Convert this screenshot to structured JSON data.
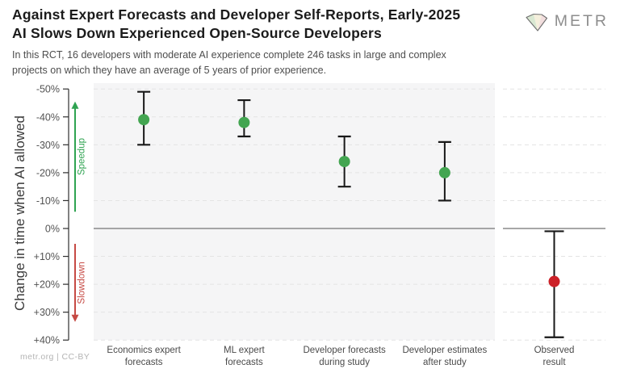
{
  "header": {
    "title_line1": "Against Expert Forecasts and Developer Self-Reports, Early-2025",
    "title_line2": "AI Slows Down Experienced Open-Source Developers",
    "subtitle_line1": "In this RCT, 16 developers with moderate AI experience complete 246 tasks in large and complex",
    "subtitle_line2": "projects on which they have an average of 5 years of prior experience.",
    "logo_text": "METR"
  },
  "footer": {
    "credit": "metr.org  |  CC-BY"
  },
  "colors": {
    "forecast_point": "#43a551",
    "observed_point": "#cc2128",
    "error_bar": "#181818",
    "panel_bg": "#f5f5f6",
    "observed_panel_bg": "#ffffff",
    "gridline": "#e4e4e4",
    "zero_line": "#8a8a8a",
    "axis": "#2f2f2f",
    "tick_label": "#535353",
    "category_label": "#4a4a4a",
    "speedup": "#2fa351",
    "slowdown": "#c64a44"
  },
  "chart_data": {
    "type": "scatter",
    "title": "Against Expert Forecasts and Developer Self-Reports, Early-2025 AI Slows Down Experienced Open-Source Developers",
    "subtitle": "In this RCT, 16 developers with moderate AI experience complete 246 tasks in large and complex projects on which they have an average of 5 years of prior experience.",
    "ylabel": "Change in time when AI allowed",
    "xlabel": "",
    "y_axis_inverted": true,
    "ylim": [
      -50,
      40
    ],
    "grid": "dashed horizontal, solid line at 0%",
    "legend_position": "none",
    "yticks": [
      {
        "value": -50,
        "label": "-50%"
      },
      {
        "value": -40,
        "label": "-40%"
      },
      {
        "value": -30,
        "label": "-30%"
      },
      {
        "value": -20,
        "label": "-20%"
      },
      {
        "value": -10,
        "label": "-10%"
      },
      {
        "value": 0,
        "label": "0%"
      },
      {
        "value": 10,
        "label": "+10%"
      },
      {
        "value": 20,
        "label": "+20%"
      },
      {
        "value": 30,
        "label": "+30%"
      },
      {
        "value": 40,
        "label": "+40%"
      }
    ],
    "annotations": [
      {
        "label": "Speedup",
        "arrow": "up",
        "color": "#2fa351",
        "span_pct": [
          -6,
          -45.5
        ]
      },
      {
        "label": "Slowdown",
        "arrow": "down",
        "color": "#c64a44",
        "span_pct": [
          5.5,
          33.5
        ]
      }
    ],
    "points": [
      {
        "category": "Economics expert forecasts",
        "label_lines": [
          "Economics expert",
          "forecasts"
        ],
        "value_pct": -39,
        "ci_pct": [
          -49,
          -30
        ],
        "color": "#43a551",
        "panel": "forecasts"
      },
      {
        "category": "ML expert forecasts",
        "label_lines": [
          "ML expert",
          "forecasts"
        ],
        "value_pct": -38,
        "ci_pct": [
          -46,
          -33
        ],
        "color": "#43a551",
        "panel": "forecasts"
      },
      {
        "category": "Developer forecasts during study",
        "label_lines": [
          "Developer forecasts",
          "during study"
        ],
        "value_pct": -24,
        "ci_pct": [
          -33,
          -15
        ],
        "color": "#43a551",
        "panel": "forecasts"
      },
      {
        "category": "Developer estimates after study",
        "label_lines": [
          "Developer estimates",
          "after study"
        ],
        "value_pct": -20,
        "ci_pct": [
          -31,
          -10
        ],
        "color": "#43a551",
        "panel": "forecasts"
      },
      {
        "category": "Observed result",
        "label_lines": [
          "Observed",
          "result"
        ],
        "value_pct": 19,
        "ci_pct": [
          1,
          39
        ],
        "color": "#cc2128",
        "panel": "observed"
      }
    ]
  }
}
